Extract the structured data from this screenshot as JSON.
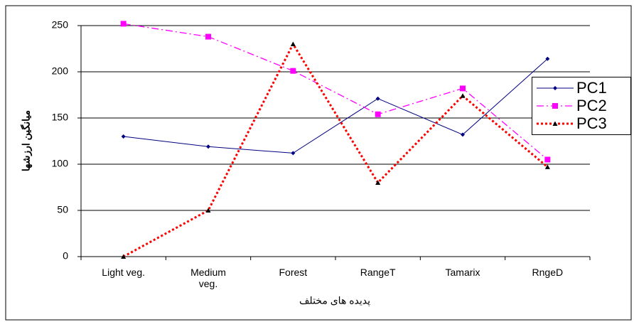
{
  "chart_data": {
    "type": "line",
    "y_label": "میانگین ارزشها",
    "x_label": "پدیده های مختلف",
    "categories": [
      "Light veg.",
      "Medium veg.",
      "Forest",
      "RangeT",
      "Tamarix",
      "RngeD"
    ],
    "series": [
      {
        "name": "PC1",
        "color": "#000080",
        "marker_color": "#000080",
        "style": "solid",
        "marker": "diamond",
        "values": [
          130,
          119,
          112,
          171,
          132,
          214
        ]
      },
      {
        "name": "PC2",
        "color": "#ff00ff",
        "marker_color": "#ff00ff",
        "style": "dashdot",
        "marker": "square",
        "values": [
          252,
          238,
          201,
          154,
          182,
          105
        ]
      },
      {
        "name": "PC3",
        "color": "#ff0000",
        "marker_color": "#000000",
        "style": "dotted",
        "marker": "triangle",
        "values": [
          0,
          50,
          230,
          80,
          174,
          97
        ]
      }
    ],
    "ylim": [
      0,
      250
    ],
    "yticks": [
      0,
      50,
      100,
      150,
      200,
      250
    ],
    "grid": true,
    "legend": "right"
  }
}
